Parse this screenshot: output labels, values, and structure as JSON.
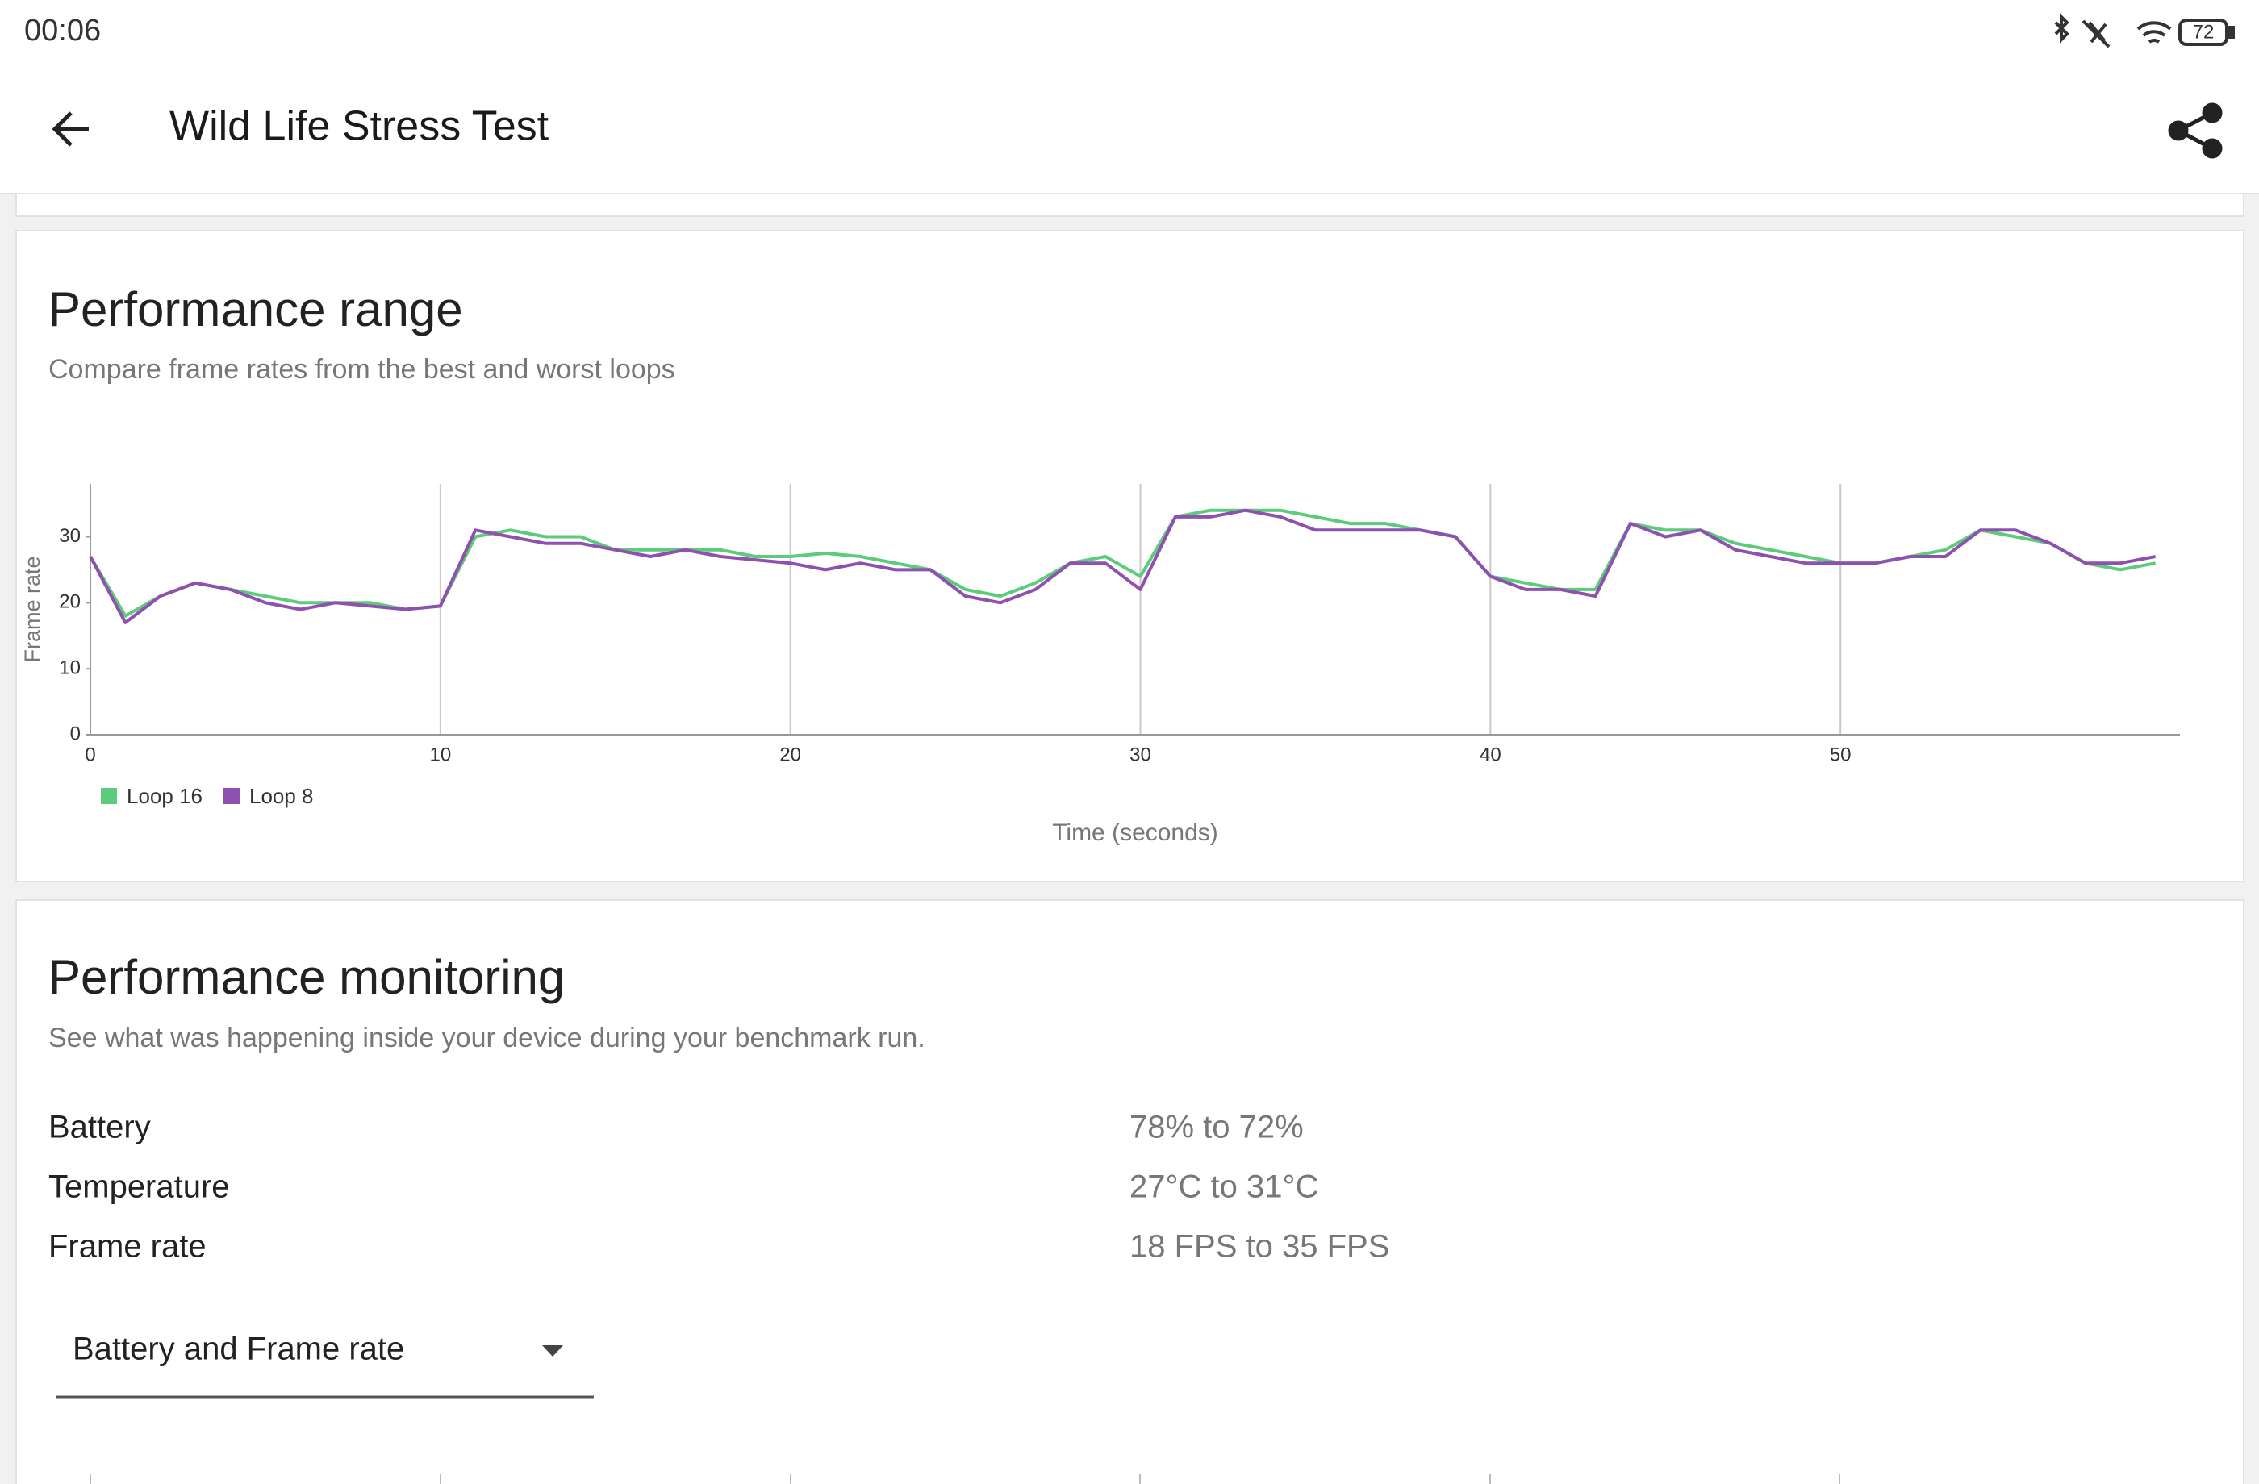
{
  "status_bar": {
    "time": "00:06",
    "battery": "72"
  },
  "app_bar": {
    "title": "Wild Life Stress Test"
  },
  "performance_range": {
    "title": "Performance range",
    "subtitle": "Compare frame rates from the best and worst loops"
  },
  "chart_data": {
    "type": "line",
    "xlabel": "Time (seconds)",
    "ylabel": "Frame rate",
    "x": [
      0,
      1,
      2,
      3,
      4,
      5,
      6,
      7,
      8,
      9,
      10,
      11,
      12,
      13,
      14,
      15,
      16,
      17,
      18,
      19,
      20,
      21,
      22,
      23,
      24,
      25,
      26,
      27,
      28,
      29,
      30,
      31,
      32,
      33,
      34,
      35,
      36,
      37,
      38,
      39,
      40,
      41,
      42,
      43,
      44,
      45,
      46,
      47,
      48,
      49,
      50,
      51,
      52,
      53,
      54,
      55,
      56,
      57,
      58,
      59
    ],
    "series": [
      {
        "name": "Loop 16",
        "color": "#5ccb7a",
        "values": [
          27,
          18,
          21,
          23,
          22,
          21,
          20,
          20,
          20,
          19,
          19.5,
          30,
          31,
          30,
          30,
          28,
          28,
          28,
          28,
          27,
          27,
          27.5,
          27,
          26,
          25,
          22,
          21,
          23,
          26,
          27,
          24,
          33,
          34,
          34,
          34,
          33,
          32,
          32,
          31,
          30,
          24,
          23,
          22,
          22,
          32,
          31,
          31,
          29,
          28,
          27,
          26,
          26,
          27,
          28,
          31,
          30,
          29,
          26,
          25,
          26
        ]
      },
      {
        "name": "Loop 8",
        "color": "#8e51b0",
        "values": [
          27,
          17,
          21,
          23,
          22,
          20,
          19,
          20,
          19.5,
          19,
          19.5,
          31,
          30,
          29,
          29,
          28,
          27,
          28,
          27,
          26.5,
          26,
          25,
          26,
          25,
          25,
          21,
          20,
          22,
          26,
          26,
          22,
          33,
          33,
          34,
          33,
          31,
          31,
          31,
          31,
          30,
          24,
          22,
          22,
          21,
          32,
          30,
          31,
          28,
          27,
          26,
          26,
          26,
          27,
          27,
          31,
          31,
          29,
          26,
          26,
          27
        ]
      }
    ],
    "xlim": [
      0,
      59.7
    ],
    "ylim": [
      0,
      38
    ],
    "xticks": [
      0,
      10,
      20,
      30,
      40,
      50
    ],
    "yticks": [
      0,
      10,
      20,
      30
    ],
    "grid": true
  },
  "monitoring": {
    "title": "Performance monitoring",
    "subtitle": "See what was happening inside your device during your benchmark run.",
    "rows": [
      [
        "Battery",
        "78% to 72%"
      ],
      [
        "Temperature",
        "27°C to 31°C"
      ],
      [
        "Frame rate",
        "18 FPS to 35 FPS"
      ]
    ],
    "dropdown": "Battery and Frame rate"
  }
}
